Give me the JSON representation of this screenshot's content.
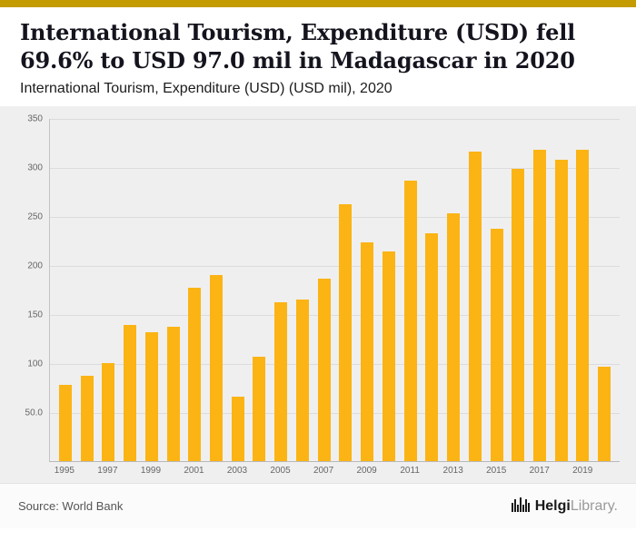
{
  "colors": {
    "accent_strip": "#C49B00",
    "bar": "#FBB414",
    "chart_background": "#EFEFEF"
  },
  "header": {
    "title": "International Tourism, Expenditure (USD) fell 69.6% to USD 97.0 mil in Madagascar in 2020",
    "subtitle": "International Tourism, Expenditure (USD) (USD mil), 2020"
  },
  "chart_data": {
    "type": "bar",
    "title": "International Tourism, Expenditure (USD) (USD mil), 2020",
    "categories": [
      1995,
      1996,
      1997,
      1998,
      1999,
      2000,
      2001,
      2002,
      2003,
      2004,
      2005,
      2006,
      2007,
      2008,
      2009,
      2010,
      2011,
      2012,
      2013,
      2014,
      2015,
      2016,
      2017,
      2018,
      2019,
      2020
    ],
    "values": [
      78,
      88,
      101,
      140,
      132,
      138,
      178,
      191,
      66,
      107,
      163,
      166,
      187,
      263,
      224,
      215,
      287,
      233,
      254,
      317,
      238,
      299,
      319,
      309,
      319,
      97
    ],
    "xlabel": "",
    "ylabel": "",
    "ylim": [
      0,
      350
    ],
    "yticks": [
      "350",
      "300",
      "250",
      "200",
      "150",
      "100",
      "50.0"
    ],
    "xtick_labels": [
      "1995",
      "1997",
      "1999",
      "2001",
      "2003",
      "2005",
      "2007",
      "2009",
      "2011",
      "2013",
      "2015",
      "2017",
      "2019"
    ],
    "grid": "horizontal",
    "legend": "none",
    "bar_color": "#FBB414"
  },
  "footer": {
    "source": "Source: World Bank",
    "brand_bold": "Helgi",
    "brand_light": "Library."
  }
}
